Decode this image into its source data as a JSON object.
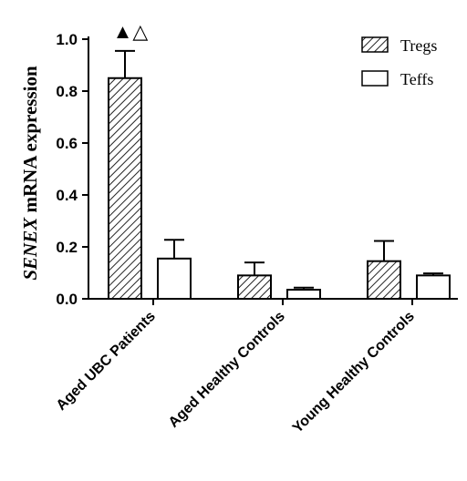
{
  "chart_data": {
    "type": "bar",
    "ylabel_italic": "SENEX",
    "ylabel_rest": " mRNA expression",
    "ylim": [
      0,
      1.0
    ],
    "yticks": [
      0.0,
      0.2,
      0.4,
      0.6,
      0.8,
      1.0
    ],
    "ytick_labels": [
      "0.0",
      "0.2",
      "0.4",
      "0.6",
      "0.8",
      "1.0"
    ],
    "categories": [
      "Aged UBC Patients",
      "Aged Healthy Controls",
      "Young Healthy Controls"
    ],
    "series": [
      {
        "name": "Tregs",
        "pattern": "hatched",
        "values": [
          0.85,
          0.09,
          0.145
        ],
        "errors": [
          0.105,
          0.05,
          0.078
        ]
      },
      {
        "name": "Teffs",
        "pattern": "open",
        "values": [
          0.155,
          0.035,
          0.09
        ],
        "errors": [
          0.072,
          0.008,
          0.008
        ]
      }
    ],
    "annotation": "▲△",
    "legend_position": "top-right",
    "grid": false
  }
}
